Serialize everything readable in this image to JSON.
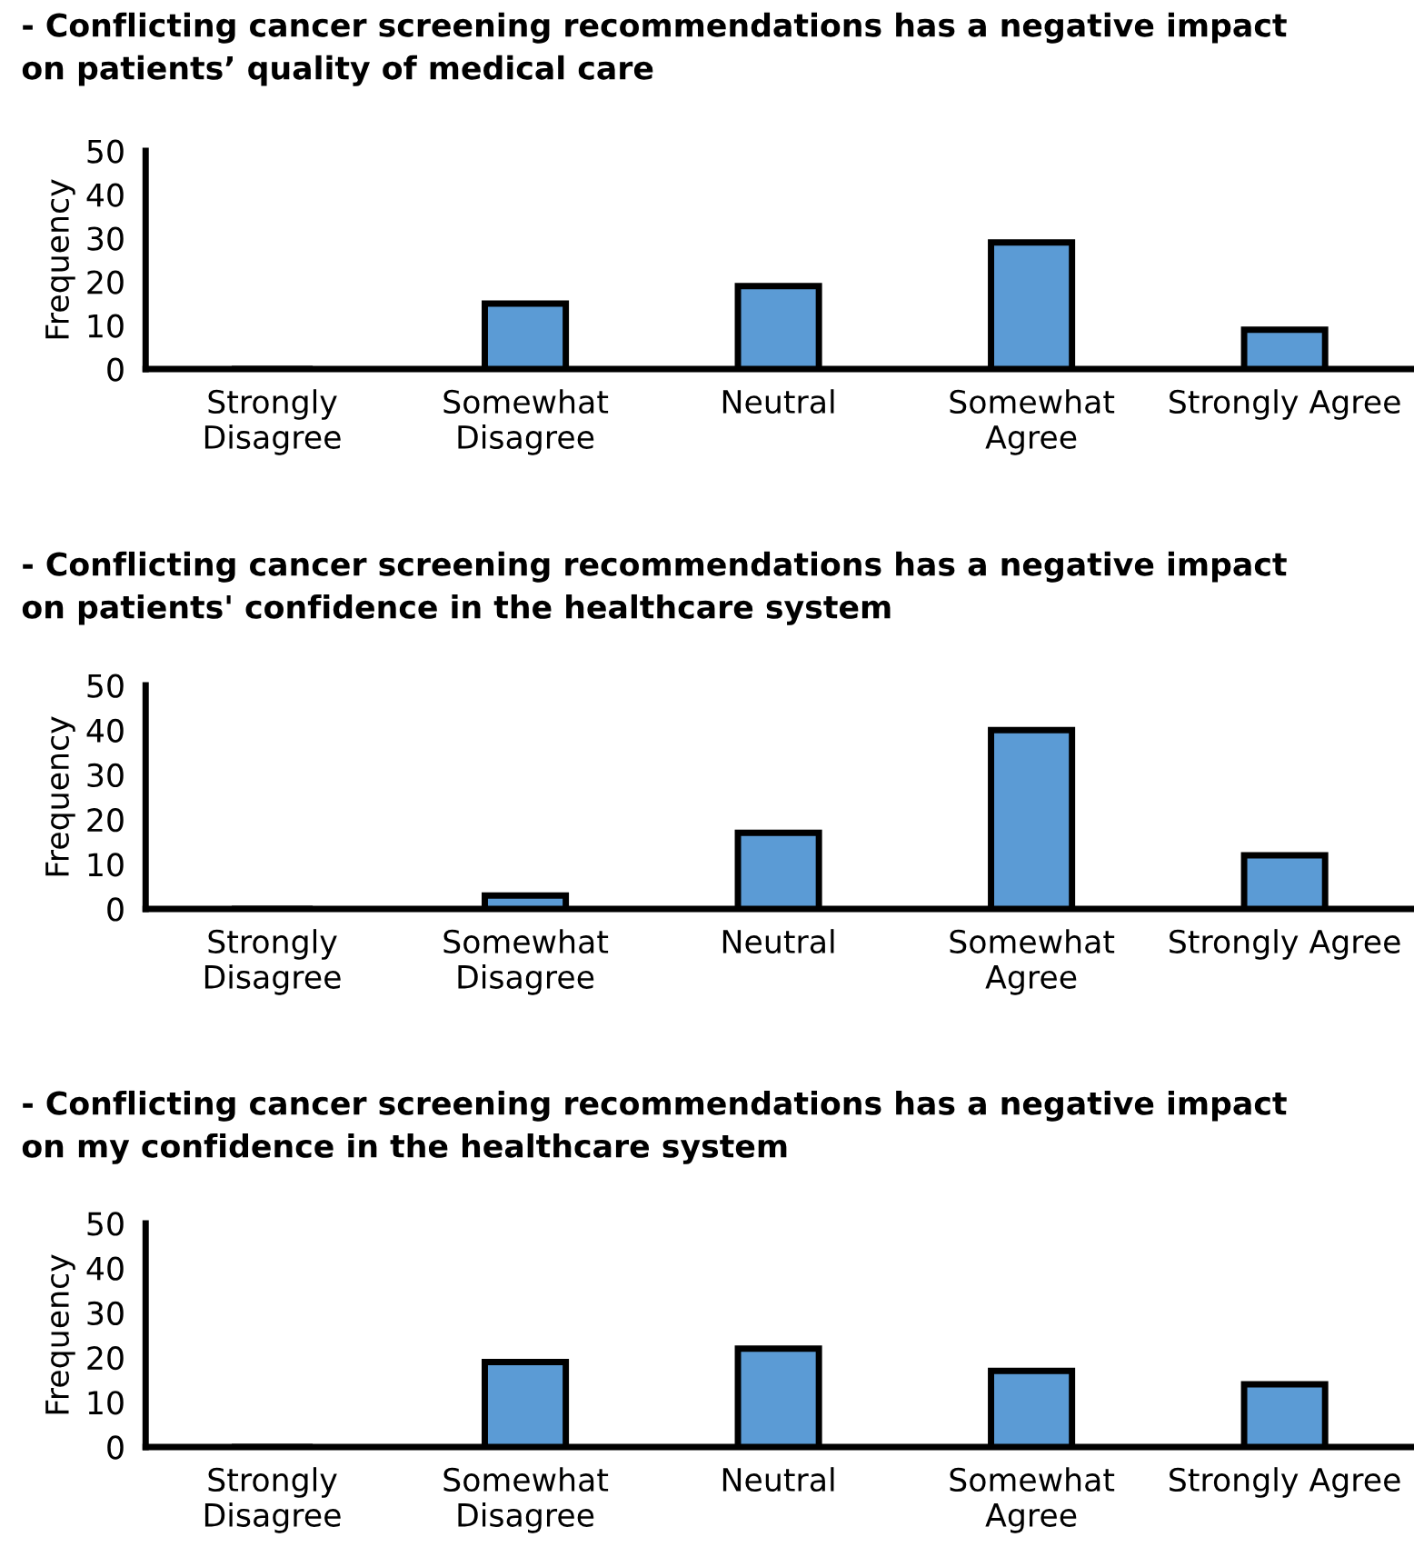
{
  "chart_data": [
    {
      "type": "bar",
      "title": "- Conflicting cancer screening recommendations has a negative impact\non patients’ quality of medical care",
      "ylabel": "Frequency",
      "categories": [
        "Strongly\nDisagree",
        "Somewhat\nDisagree",
        "Neutral",
        "Somewhat\nAgree",
        "Strongly Agree"
      ],
      "values": [
        0,
        15,
        19,
        29,
        9
      ],
      "color": "#5b9bd5",
      "ylim": [
        0,
        50
      ],
      "yticks": [
        0,
        10,
        20,
        30,
        40,
        50
      ],
      "grid": false
    },
    {
      "type": "bar",
      "title": "- Conflicting cancer screening recommendations has a negative impact\non patients' confidence in the healthcare system",
      "ylabel": "Frequency",
      "categories": [
        "Strongly\nDisagree",
        "Somewhat\nDisagree",
        "Neutral",
        "Somewhat\nAgree",
        "Strongly Agree"
      ],
      "values": [
        0,
        3,
        17,
        40,
        12
      ],
      "color": "#5b9bd5",
      "ylim": [
        0,
        50
      ],
      "yticks": [
        0,
        10,
        20,
        30,
        40,
        50
      ],
      "grid": false
    },
    {
      "type": "bar",
      "title": "- Conflicting cancer screening recommendations has a negative impact\non my confidence in the healthcare system",
      "ylabel": "Frequency",
      "categories": [
        "Strongly\nDisagree",
        "Somewhat\nDisagree",
        "Neutral",
        "Somewhat\nAgree",
        "Strongly Agree"
      ],
      "values": [
        0,
        19,
        22,
        17,
        14
      ],
      "color": "#5b9bd5",
      "ylim": [
        0,
        50
      ],
      "yticks": [
        0,
        10,
        20,
        30,
        40,
        50
      ],
      "grid": false
    }
  ]
}
